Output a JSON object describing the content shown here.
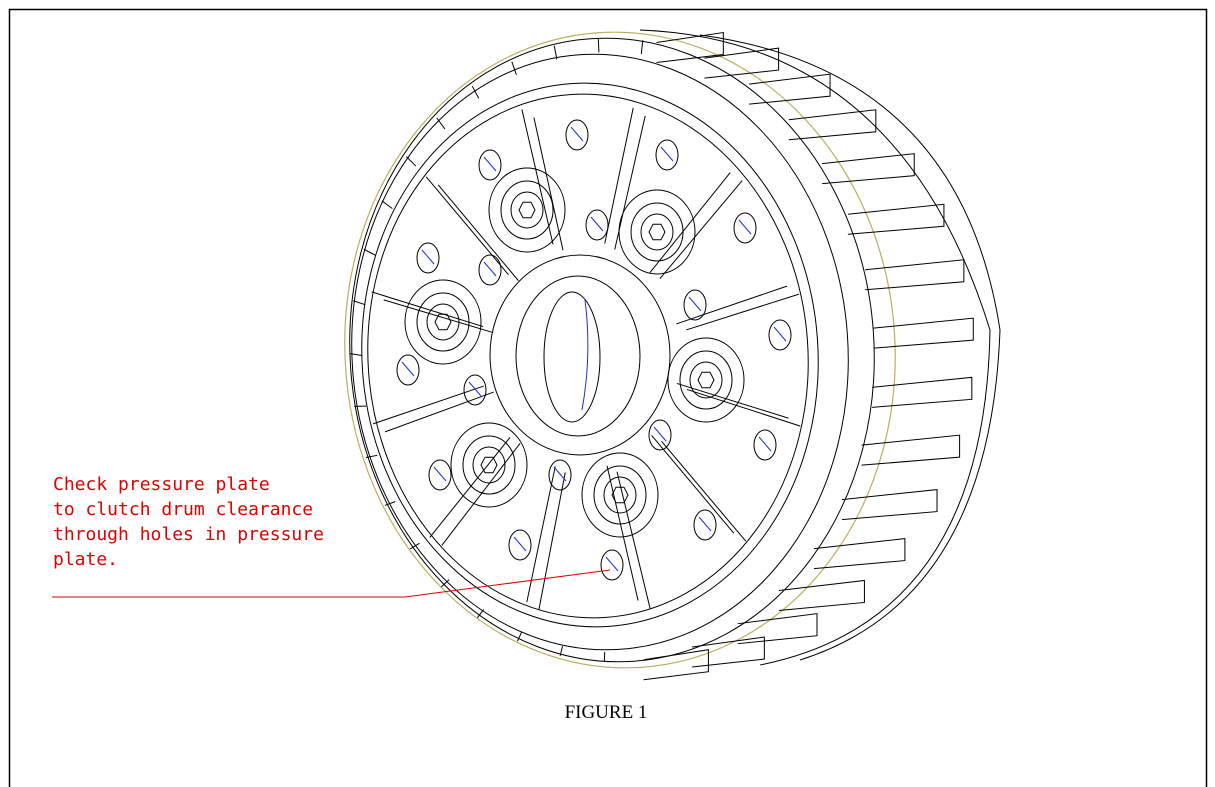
{
  "annotation": {
    "lines": [
      "Check pressure plate",
      "to clutch drum clearance",
      "through holes in pressure",
      "plate."
    ]
  },
  "caption": "FIGURE 1"
}
